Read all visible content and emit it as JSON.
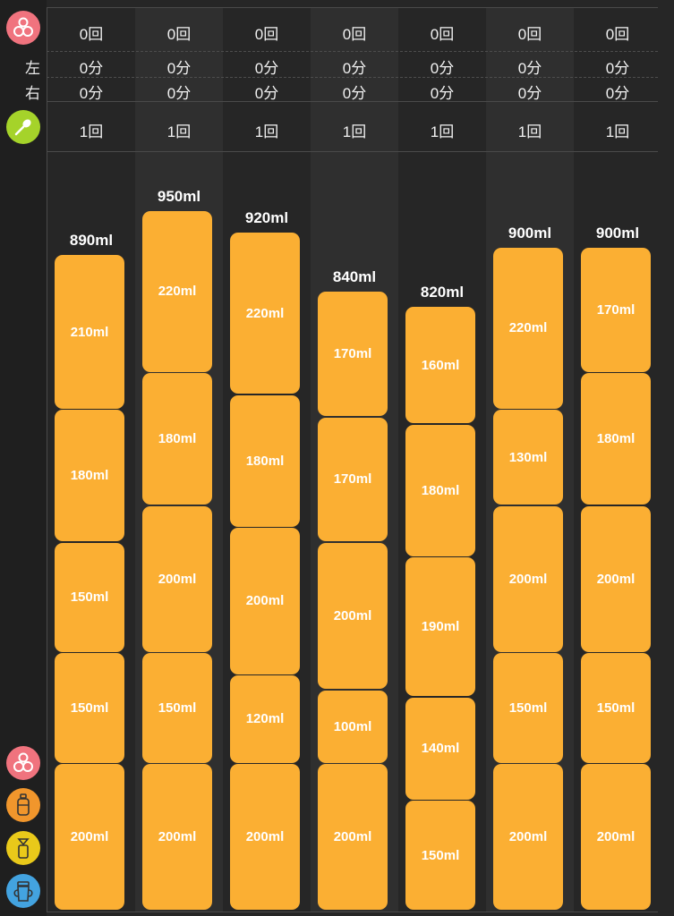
{
  "sidebar": {
    "labels": {
      "left": "左",
      "right": "右"
    },
    "icons": [
      {
        "name": "breastfeeding-icon",
        "color": "#f0737e"
      },
      {
        "name": "baby-food-spoon-icon",
        "color": "#a5d32a"
      },
      {
        "name": "breastfeeding-legend-icon",
        "color": "#f0737e"
      },
      {
        "name": "formula-bottle-icon",
        "color": "#f1962c"
      },
      {
        "name": "pumped-milk-bottle-icon",
        "color": "#e9c91a"
      },
      {
        "name": "sippy-cup-icon",
        "color": "#43a3e0"
      }
    ]
  },
  "colors": {
    "bar": "#fbaf33",
    "background": "#262626"
  },
  "days": [
    {
      "nursing_count": "0回",
      "left_minutes": "0分",
      "right_minutes": "0分",
      "baby_food_count": "1回",
      "total": "890ml",
      "segments": [
        {
          "label": "210ml",
          "value": 210
        },
        {
          "label": "180ml",
          "value": 180
        },
        {
          "label": "150ml",
          "value": 150
        },
        {
          "label": "150ml",
          "value": 150
        },
        {
          "label": "200ml",
          "value": 200
        }
      ]
    },
    {
      "nursing_count": "0回",
      "left_minutes": "0分",
      "right_minutes": "0分",
      "baby_food_count": "1回",
      "total": "950ml",
      "segments": [
        {
          "label": "220ml",
          "value": 220
        },
        {
          "label": "180ml",
          "value": 180
        },
        {
          "label": "200ml",
          "value": 200
        },
        {
          "label": "150ml",
          "value": 150
        },
        {
          "label": "200ml",
          "value": 200
        }
      ]
    },
    {
      "nursing_count": "0回",
      "left_minutes": "0分",
      "right_minutes": "0分",
      "baby_food_count": "1回",
      "total": "920ml",
      "segments": [
        {
          "label": "220ml",
          "value": 220
        },
        {
          "label": "180ml",
          "value": 180
        },
        {
          "label": "200ml",
          "value": 200
        },
        {
          "label": "120ml",
          "value": 120
        },
        {
          "label": "200ml",
          "value": 200
        }
      ]
    },
    {
      "nursing_count": "0回",
      "left_minutes": "0分",
      "right_minutes": "0分",
      "baby_food_count": "1回",
      "total": "840ml",
      "segments": [
        {
          "label": "170ml",
          "value": 170
        },
        {
          "label": "170ml",
          "value": 170
        },
        {
          "label": "200ml",
          "value": 200
        },
        {
          "label": "100ml",
          "value": 100
        },
        {
          "label": "200ml",
          "value": 200
        }
      ]
    },
    {
      "nursing_count": "0回",
      "left_minutes": "0分",
      "right_minutes": "0分",
      "baby_food_count": "1回",
      "total": "820ml",
      "segments": [
        {
          "label": "160ml",
          "value": 160
        },
        {
          "label": "180ml",
          "value": 180
        },
        {
          "label": "190ml",
          "value": 190
        },
        {
          "label": "140ml",
          "value": 140
        },
        {
          "label": "150ml",
          "value": 150
        }
      ]
    },
    {
      "nursing_count": "0回",
      "left_minutes": "0分",
      "right_minutes": "0分",
      "baby_food_count": "1回",
      "total": "900ml",
      "segments": [
        {
          "label": "220ml",
          "value": 220
        },
        {
          "label": "130ml",
          "value": 130
        },
        {
          "label": "200ml",
          "value": 200
        },
        {
          "label": "150ml",
          "value": 150
        },
        {
          "label": "200ml",
          "value": 200
        }
      ]
    },
    {
      "nursing_count": "0回",
      "left_minutes": "0分",
      "right_minutes": "0分",
      "baby_food_count": "1回",
      "total": "900ml",
      "segments": [
        {
          "label": "170ml",
          "value": 170
        },
        {
          "label": "180ml",
          "value": 180
        },
        {
          "label": "200ml",
          "value": 200
        },
        {
          "label": "150ml",
          "value": 150
        },
        {
          "label": "200ml",
          "value": 200
        }
      ]
    }
  ]
}
